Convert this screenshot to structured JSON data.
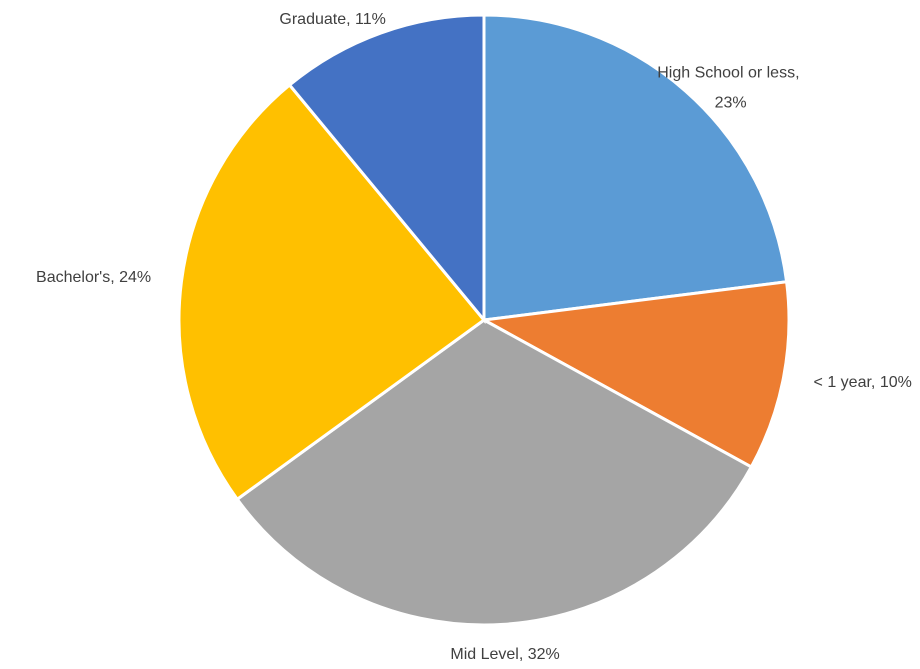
{
  "chart_data": {
    "type": "pie",
    "values": [
      23,
      10,
      32,
      24,
      11
    ],
    "value_labels": [
      "High School or less, 23%",
      "< 1 year, 10%",
      "Mid Level, 32%",
      "Bachelor's, 24%",
      "Graduate, 11%"
    ],
    "colors": [
      "#5b9bd5",
      "#ed7d31",
      "#a5a5a5",
      "#ffc000",
      "#4472c4"
    ]
  }
}
